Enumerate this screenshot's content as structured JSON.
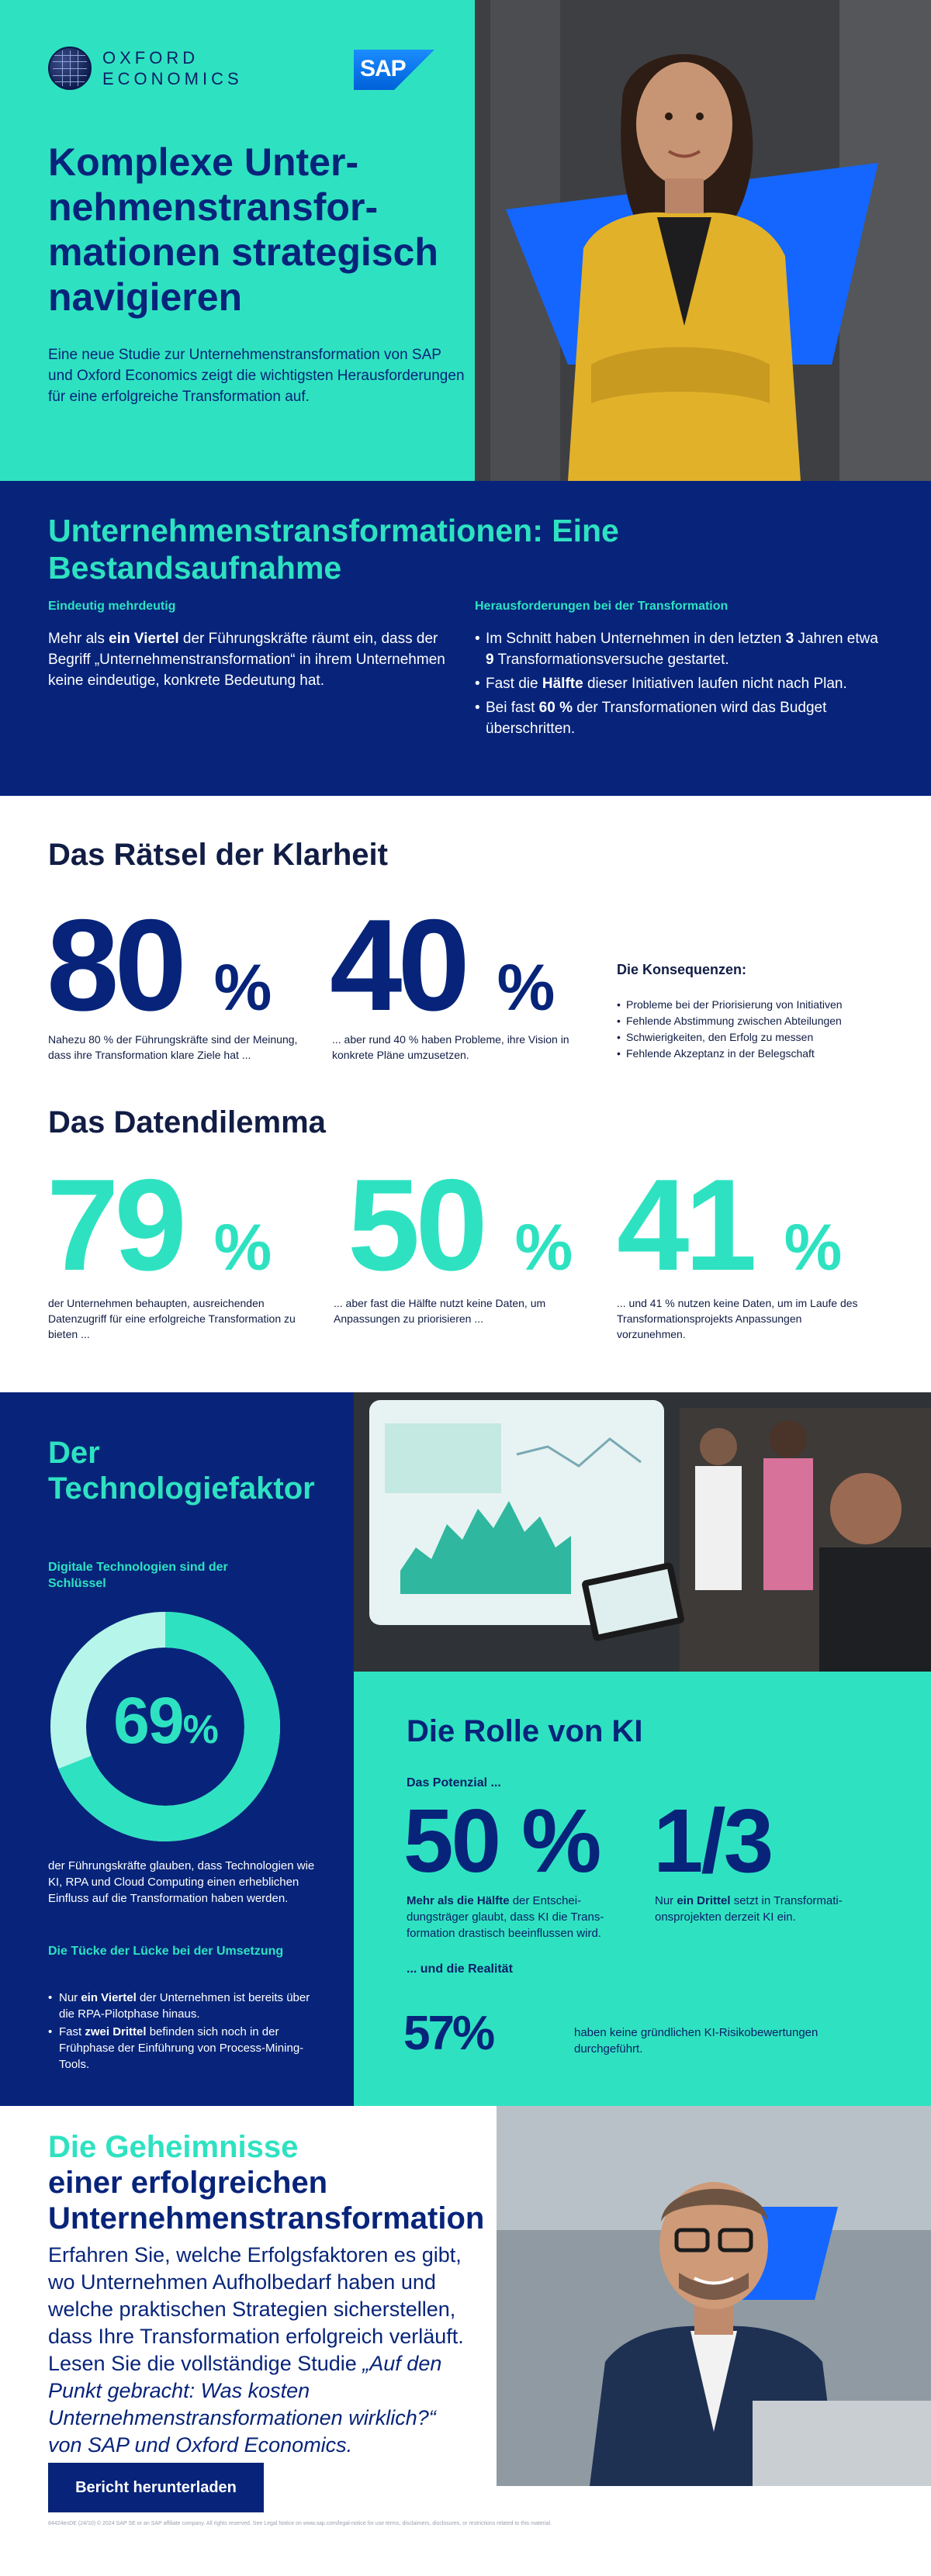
{
  "header": {
    "logo_text_line1": "OXFORD",
    "logo_text_line2": "ECONOMICS",
    "sap_logo": "SAP",
    "title": "Komplexe Unter­nehmenstransfor­mationen strate­gisch navigieren",
    "subtitle": "Eine neue Studie zur Unternehmenstransformation von SAP und Oxford Economics zeigt die wichtigsten Her­ausforderungen für eine erfolgreiche Transformation auf."
  },
  "bestand": {
    "title": "Unternehmenstransformationen: Eine Bestandsaufnahme",
    "left_head": "Eindeutig mehrdeutig",
    "left_text_pre": "Mehr als ",
    "left_text_bold": "ein Viertel",
    "left_text_post": " der Führungskräfte räumt ein, dass der Begriff „Unternehmenstransformation“ in ihrem Unternehmen keine eindeutige, konkrete Bedeutung hat.",
    "right_head": "Herausforderungen bei der Transformation",
    "items": [
      {
        "pre": "Im Schnitt haben Unternehmen in den letzten ",
        "b1": "3",
        "mid": " Jahren etwa ",
        "b2": "9",
        "post": " Transformationsversuche gestartet."
      },
      {
        "pre": "Fast die ",
        "b1": "Hälfte",
        "mid": " dieser Initiativen laufen nicht nach Plan.",
        "b2": "",
        "post": ""
      },
      {
        "pre": "Bei fast ",
        "b1": "60 %",
        "mid": " der Transformationen wird das Budget überschritten.",
        "b2": "",
        "post": ""
      }
    ]
  },
  "klarheit": {
    "title": "Das Rätsel der Klarheit",
    "stat1_value": "80",
    "stat1_caption": "Nahezu 80 % der Führungskräfte sind der Mei­nung, dass ihre Transformation klare Ziele hat ...",
    "stat2_value": "40",
    "stat2_caption": "... aber rund 40 % haben Probleme, ihre Vision in konkrete Pläne umzusetzen.",
    "pct": "%",
    "kons_head": "Die Konsequenzen:",
    "kons_items": [
      "Probleme bei der Priorisierung von Initiativen",
      "Fehlende Abstimmung zwischen Abteilungen",
      "Schwierigkeiten, den Erfolg zu messen",
      "Fehlende Akzeptanz in der Belegschaft"
    ]
  },
  "daten": {
    "title": "Das Datendilemma",
    "stat1_value": "79",
    "stat1_caption": "der Unternehmen behaupten, ausreichenden Datenzugriff für eine erfolgreiche Transformation zu bieten ...",
    "stat2_value": "50",
    "stat2_caption": "... aber fast die Hälfte nutzt keine Daten, um Anpassungen zu priorisieren ...",
    "stat3_value": "41",
    "stat3_caption": "... und 41 % nutzen keine Daten, um im Laufe des Transformationsprojekts Anpassungen vorzunehmen.",
    "pct": "%"
  },
  "tech": {
    "title": "Der Technologiefaktor",
    "sub": "Digitale Technologien sind der Schlüssel",
    "donut_value": "69",
    "donut_fraction": 0.69,
    "donut_pct": "%",
    "caption": "der Führungskräfte glauben, dass Technologien wie KI, RPA und Cloud Computing einen erhebli­chen Einfluss auf die Transformation haben werden.",
    "sub2": "Die Tücke der Lücke bei der Umsetzung",
    "items": [
      {
        "pre": "Nur ",
        "b": "ein Viertel",
        "post": " der Unternehmen ist bereits über die RPA-Pilotphase hinaus."
      },
      {
        "pre": "Fast ",
        "b": "zwei Drittel",
        "post": " befinden sich noch in der Frühphase der Einführung von Process-Mining-Tools."
      }
    ]
  },
  "ki": {
    "title": "Die Rolle von KI",
    "potential_head": "Das Potenzial ...",
    "stat1_value": "50 %",
    "stat1_bold": "Mehr als die Hälfte",
    "stat1_caption": " der Entschei­dungsträger glaubt, dass KI die Trans­formation drastisch beeinflussen wird.",
    "stat2_value": "1/3",
    "stat2_pre": "Nur ",
    "stat2_bold": "ein Drittel",
    "stat2_caption": " setzt in Transformati­onsprojekten derzeit KI ein.",
    "reality_head": "... und die Realität",
    "stat3_value": "57",
    "stat3_pct": "%",
    "stat3_caption": "haben keine gründlichen KI-Risikobe­wertungen durchgeführt."
  },
  "geheim": {
    "title_line1": "Die Geheimnisse",
    "title_line2": "einer erfolgreichen Unternehmenstransformation",
    "text": "Erfahren Sie, welche Erfolgsfaktoren es gibt, wo Unternehmen Aufholbedarf haben und welche praktischen Strategien sicherstellen, dass Ihre Transformation erfolgreich ver­läuft. Lesen Sie die vollständige Studie ",
    "text_italic": "„Auf den Punkt gebracht: Was kosten Unternehmenstransformationen wirklich?“",
    "text_post": " von SAP und Oxford Economics.",
    "button": "Bericht herunterladen"
  },
  "footer": "84424enDE (24/10) © 2024 SAP SE or an SAP affiliate company. All rights reserved. See Legal Notice on www.sap.com/legal-notice for use terms, disclaimers, disclosures, or restrictions related to this material.",
  "colors": {
    "teal": "#2ee2c1",
    "navy": "#07247a",
    "blue": "#1466ff"
  }
}
